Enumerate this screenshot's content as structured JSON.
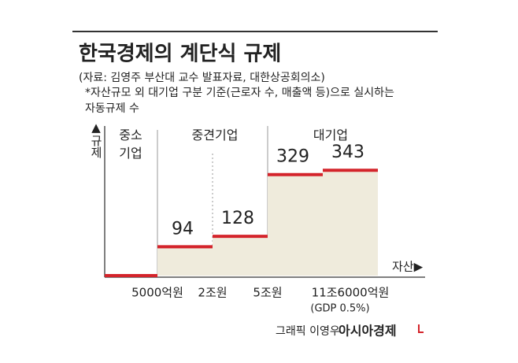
{
  "chart_data": {
    "type": "step",
    "title": "한국경제의 계단식 규제",
    "source": "(자료: 김영주 부산대 교수 발표자료, 대한상공회의소)",
    "note": "*자산규모 외 대기업 구분 기준(근로자 수, 매출액 등)으로 실시하는\n자동규제 수",
    "y_label": "▲규제",
    "x_label": "자산▶",
    "groups": [
      "중소\n기업",
      "중견기업",
      "대기업"
    ],
    "x_tick_labels": [
      "5000억원",
      "2조원",
      "5조원",
      "11조6000억원"
    ],
    "x_tick_note": "(GDP 0.5%)",
    "values": [
      0,
      94,
      128,
      329,
      343
    ],
    "color": "#d4242b",
    "fill": "#efebdc",
    "credit": "그래픽 이영우",
    "publisher": "아시아경제"
  }
}
